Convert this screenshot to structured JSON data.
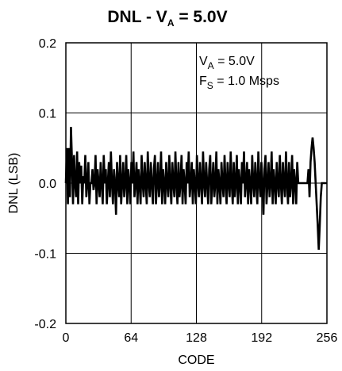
{
  "chart_data": {
    "type": "line",
    "title": {
      "main": "DNL - V",
      "sub": "A",
      "rest": " = 5.0V"
    },
    "xlabel": "CODE",
    "ylabel": "DNL (LSB)",
    "xlim": [
      0,
      256
    ],
    "ylim": [
      -0.2,
      0.2
    ],
    "xticks": [
      0,
      64,
      128,
      192,
      256
    ],
    "xtick_labels": [
      "0",
      "64",
      "128",
      "192",
      "256"
    ],
    "yticks": [
      0.2,
      0.1,
      0.0,
      -0.1,
      -0.2
    ],
    "ytick_labels": [
      "0.2",
      "0.1",
      "0.0",
      "-0.1",
      "-0.2"
    ],
    "grid": true,
    "annotations": [
      {
        "main": "V",
        "sub": "A",
        "rest": " = 5.0V"
      },
      {
        "main": "F",
        "sub": "S",
        "rest": " = 1.0 Msps"
      }
    ],
    "series": [
      {
        "values": [
          0.0,
          0.05,
          -0.03,
          0.05,
          -0.02,
          0.08,
          0.03,
          -0.03,
          0.04,
          0.0,
          -0.02,
          0.045,
          -0.03,
          0.03,
          0.0,
          0.025,
          -0.03,
          0.01,
          0.0,
          0.04,
          -0.02,
          0.0,
          0.03,
          -0.03,
          0.0,
          0.0,
          0.02,
          -0.01,
          0.0,
          0.04,
          -0.03,
          0.02,
          0.0,
          -0.02,
          0.03,
          0.0,
          -0.03,
          0.04,
          0.0,
          0.02,
          -0.03,
          0.0,
          0.03,
          -0.02,
          0.045,
          0.0,
          -0.03,
          0.02,
          0.0,
          -0.045,
          0.03,
          0.0,
          -0.02,
          0.04,
          -0.03,
          0.0,
          0.03,
          -0.02,
          0.0,
          0.04,
          -0.03,
          0.02,
          0.0,
          -0.03,
          0.03,
          0.0,
          0.045,
          -0.02,
          0.0,
          0.03,
          -0.03,
          0.02,
          0.0,
          -0.03,
          0.04,
          0.0,
          -0.02,
          0.03,
          0.0,
          -0.03,
          0.045,
          0.0,
          -0.02,
          0.03,
          0.0,
          -0.03,
          0.02,
          0.04,
          -0.03,
          0.0,
          0.03,
          -0.02,
          0.0,
          0.045,
          -0.03,
          0.02,
          0.0,
          -0.03,
          0.03,
          0.0,
          -0.02,
          0.04,
          0.0,
          -0.03,
          0.03,
          0.0,
          -0.02,
          0.045,
          0.0,
          -0.03,
          0.03,
          -0.02,
          0.0,
          0.04,
          -0.03,
          0.02,
          0.0,
          -0.03,
          0.03,
          0.0,
          0.045,
          -0.02,
          0.0,
          0.03,
          -0.03,
          0.02,
          0.0,
          -0.03,
          0.04,
          0.0,
          -0.02,
          0.03,
          0.0,
          -0.03,
          0.045,
          0.0,
          -0.02,
          0.03,
          0.0,
          -0.03,
          0.02,
          0.04,
          -0.03,
          0.0,
          0.03,
          -0.02,
          0.0,
          0.045,
          -0.03,
          0.02,
          0.0,
          -0.03,
          0.03,
          0.0,
          -0.02,
          0.04,
          0.0,
          -0.03,
          0.03,
          0.0,
          -0.02,
          0.045,
          0.0,
          -0.03,
          0.03,
          -0.02,
          0.0,
          0.04,
          -0.03,
          0.02,
          0.0,
          -0.03,
          0.03,
          0.0,
          0.045,
          -0.02,
          0.0,
          0.03,
          -0.03,
          0.02,
          0.0,
          -0.03,
          0.04,
          0.0,
          -0.02,
          0.03,
          0.0,
          -0.03,
          0.045,
          0.0,
          -0.02,
          0.03,
          0.0,
          -0.045,
          0.02,
          0.04,
          -0.03,
          0.0,
          0.03,
          -0.02,
          0.0,
          0.045,
          -0.03,
          0.02,
          0.0,
          -0.03,
          0.03,
          0.0,
          -0.02,
          0.04,
          0.0,
          -0.03,
          0.03,
          0.0,
          -0.02,
          0.045,
          0.0,
          -0.03,
          0.03,
          -0.02,
          0.0,
          0.04,
          -0.03,
          0.02,
          0.0,
          -0.03,
          0.03,
          0.0,
          0.0,
          0.0,
          0.0,
          0.0,
          0.0,
          0.0,
          0.0,
          0.0,
          0.0,
          0.02,
          -0.02,
          0.03,
          0.05,
          0.065,
          0.05,
          0.03,
          0.0,
          -0.03,
          -0.06,
          -0.095,
          -0.06,
          -0.02,
          0.0,
          0.0,
          0.0,
          0.0,
          0.0,
          0.0
        ]
      }
    ]
  }
}
